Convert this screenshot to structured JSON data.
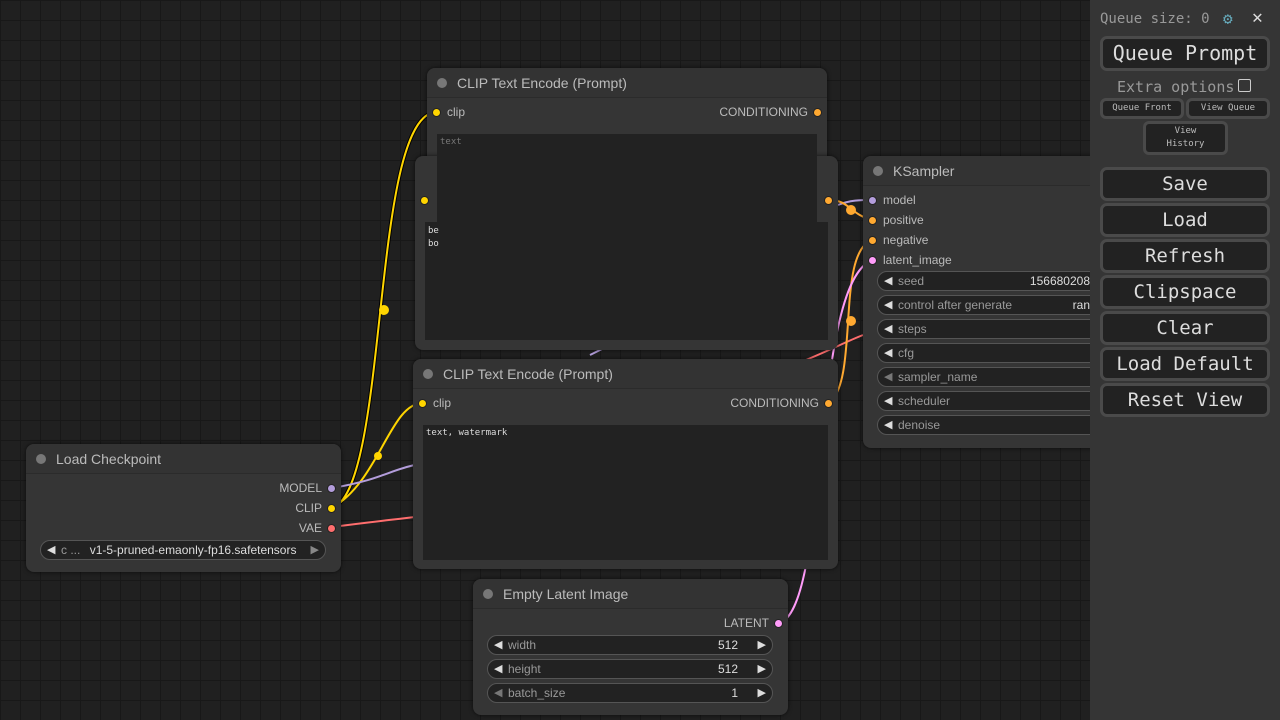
{
  "colors": {
    "clip": "#ffd500",
    "model": "#b39ddb",
    "vae": "#ff6e6e",
    "conditioning": "#ffa931",
    "latent": "#ff9cf9"
  },
  "nodes": {
    "clip_pos": {
      "title": "CLIP Text Encode (Prompt)",
      "input": "clip",
      "output": "CONDITIONING",
      "text": "text",
      "back_text": "be\nbo"
    },
    "clip_neg": {
      "title": "CLIP Text Encode (Prompt)",
      "input": "clip",
      "output": "CONDITIONING",
      "text": "text, watermark"
    },
    "checkpoint": {
      "title": "Load Checkpoint",
      "outputs": [
        "MODEL",
        "CLIP",
        "VAE"
      ],
      "widget_label": "c ...",
      "widget_value": "v1-5-pruned-emaonly-fp16.safetensors"
    },
    "latent": {
      "title": "Empty Latent Image",
      "output": "LATENT",
      "widgets": [
        {
          "label": "width",
          "value": "512"
        },
        {
          "label": "height",
          "value": "512"
        },
        {
          "label": "batch_size",
          "value": "1"
        }
      ]
    },
    "ksampler": {
      "title": "KSampler",
      "inputs": [
        "model",
        "positive",
        "negative",
        "latent_image"
      ],
      "widgets": [
        {
          "label": "seed",
          "value": "156680208"
        },
        {
          "label": "control after generate",
          "value": "ran"
        },
        {
          "label": "steps",
          "value": ""
        },
        {
          "label": "cfg",
          "value": ""
        },
        {
          "label": "sampler_name",
          "value": ""
        },
        {
          "label": "scheduler",
          "value": ""
        },
        {
          "label": "denoise",
          "value": ""
        }
      ]
    }
  },
  "sidebar": {
    "queue_size": "Queue size: 0",
    "settings_icon": "gear-icon",
    "close": "✕",
    "queue_prompt": "Queue Prompt",
    "extra_options": "Extra options",
    "queue_front": "Queue Front",
    "view_queue": "View Queue",
    "view_history": "View History",
    "buttons": [
      "Save",
      "Load",
      "Refresh",
      "Clipspace",
      "Clear",
      "Load Default",
      "Reset View"
    ]
  }
}
